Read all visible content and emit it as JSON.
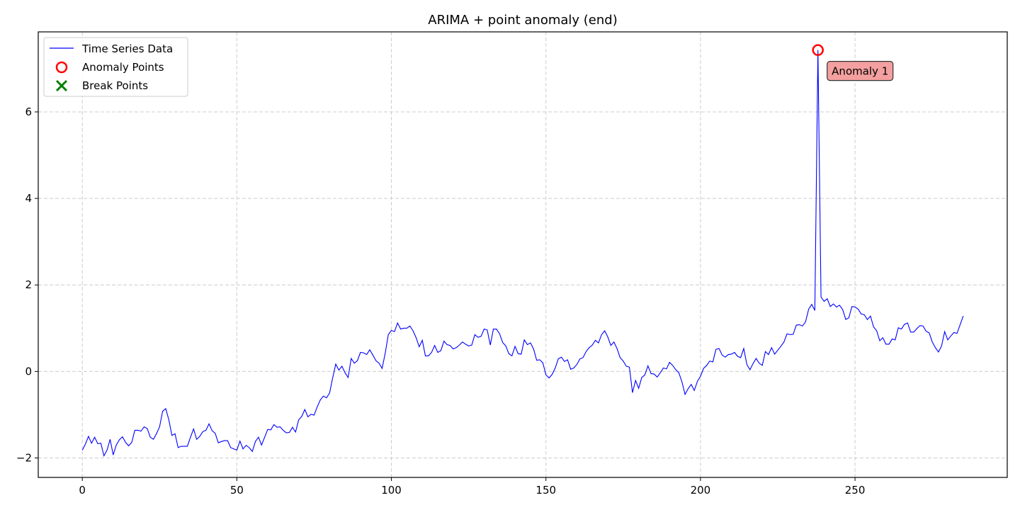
{
  "chart_data": {
    "type": "line",
    "title": "ARIMA + point anomaly (end)",
    "xlabel": "",
    "ylabel": "",
    "xlim": [
      -14.25,
      299.25
    ],
    "ylim": [
      -2.45,
      7.85
    ],
    "xticks": [
      0,
      50,
      100,
      150,
      200,
      250
    ],
    "yticks": [
      -2,
      0,
      2,
      4,
      6
    ],
    "xtick_labels": [
      "0",
      "50",
      "100",
      "150",
      "200",
      "250"
    ],
    "ytick_labels": [
      "−2",
      "0",
      "2",
      "4",
      "6"
    ],
    "grid": true,
    "legend_placement": "top-left",
    "legend": [
      {
        "label": "Time Series Data",
        "marker": "line",
        "color": "#0000ff"
      },
      {
        "label": "Anomaly Points",
        "marker": "circle",
        "color": "#ff0000"
      },
      {
        "label": "Break Points",
        "marker": "x",
        "color": "#008000"
      }
    ],
    "series": [
      {
        "name": "Time Series Data",
        "color": "#0000ff",
        "x_start": 0,
        "x_step": 1,
        "y": [
          -1.82,
          -1.68,
          -1.5,
          -1.66,
          -1.52,
          -1.67,
          -1.66,
          -1.95,
          -1.82,
          -1.57,
          -1.93,
          -1.7,
          -1.58,
          -1.51,
          -1.64,
          -1.72,
          -1.64,
          -1.36,
          -1.36,
          -1.38,
          -1.28,
          -1.32,
          -1.52,
          -1.57,
          -1.44,
          -1.28,
          -0.92,
          -0.86,
          -1.12,
          -1.48,
          -1.44,
          -1.76,
          -1.73,
          -1.73,
          -1.73,
          -1.52,
          -1.33,
          -1.57,
          -1.5,
          -1.39,
          -1.36,
          -1.21,
          -1.37,
          -1.43,
          -1.65,
          -1.62,
          -1.6,
          -1.6,
          -1.76,
          -1.79,
          -1.82,
          -1.61,
          -1.79,
          -1.71,
          -1.76,
          -1.85,
          -1.62,
          -1.52,
          -1.7,
          -1.52,
          -1.34,
          -1.35,
          -1.23,
          -1.29,
          -1.28,
          -1.36,
          -1.42,
          -1.41,
          -1.29,
          -1.4,
          -1.12,
          -1.04,
          -0.88,
          -1.05,
          -0.99,
          -1.01,
          -0.82,
          -0.66,
          -0.57,
          -0.61,
          -0.5,
          -0.15,
          0.17,
          0.03,
          0.12,
          -0.03,
          -0.14,
          0.3,
          0.19,
          0.25,
          0.44,
          0.43,
          0.39,
          0.5,
          0.38,
          0.25,
          0.19,
          0.07,
          0.42,
          0.85,
          0.95,
          0.92,
          1.12,
          0.98,
          1.0,
          1.0,
          1.05,
          0.94,
          0.78,
          0.57,
          0.72,
          0.36,
          0.36,
          0.44,
          0.6,
          0.44,
          0.48,
          0.7,
          0.62,
          0.6,
          0.52,
          0.55,
          0.61,
          0.68,
          0.63,
          0.59,
          0.61,
          0.85,
          0.79,
          0.81,
          0.98,
          0.96,
          0.61,
          0.98,
          0.98,
          0.87,
          0.67,
          0.59,
          0.41,
          0.36,
          0.58,
          0.41,
          0.4,
          0.73,
          0.62,
          0.66,
          0.52,
          0.26,
          0.27,
          0.2,
          -0.08,
          -0.15,
          -0.07,
          0.08,
          0.29,
          0.33,
          0.23,
          0.27,
          0.05,
          0.08,
          0.16,
          0.29,
          0.32,
          0.46,
          0.55,
          0.61,
          0.72,
          0.66,
          0.85,
          0.94,
          0.8,
          0.6,
          0.68,
          0.53,
          0.32,
          0.24,
          0.12,
          0.1,
          -0.49,
          -0.21,
          -0.39,
          -0.14,
          -0.08,
          0.13,
          -0.05,
          -0.06,
          -0.13,
          -0.03,
          0.08,
          0.06,
          0.21,
          0.14,
          0.04,
          -0.03,
          -0.24,
          -0.53,
          -0.4,
          -0.3,
          -0.44,
          -0.23,
          -0.11,
          0.07,
          0.14,
          0.24,
          0.22,
          0.51,
          0.53,
          0.38,
          0.33,
          0.39,
          0.4,
          0.44,
          0.35,
          0.32,
          0.53,
          0.16,
          0.04,
          0.18,
          0.3,
          0.19,
          0.14,
          0.46,
          0.39,
          0.55,
          0.4,
          0.49,
          0.58,
          0.68,
          0.87,
          0.85,
          0.86,
          1.07,
          1.08,
          1.05,
          1.15,
          1.44,
          1.55,
          1.41,
          7.43,
          1.72,
          1.62,
          1.68,
          1.5,
          1.56,
          1.49,
          1.53,
          1.43,
          1.2,
          1.24,
          1.5,
          1.49,
          1.44,
          1.33,
          1.31,
          1.2,
          1.28,
          1.03,
          0.94,
          0.71,
          0.78,
          0.63,
          0.63,
          0.75,
          0.73,
          1.01,
          0.98,
          1.09,
          1.12,
          0.91,
          0.91,
          0.99,
          1.06,
          1.05,
          0.93,
          0.89,
          0.68,
          0.55,
          0.45,
          0.59,
          0.92,
          0.73,
          0.82,
          0.9,
          0.88,
          1.08,
          1.28
        ]
      }
    ],
    "anomaly_points": [
      {
        "x": 238,
        "y": 7.43,
        "label": "Anomaly 1"
      }
    ],
    "break_points": []
  }
}
